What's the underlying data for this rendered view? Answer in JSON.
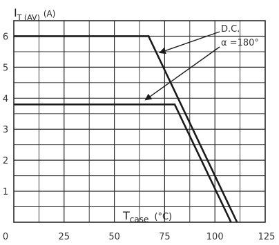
{
  "chart_data": {
    "type": "line",
    "title": "",
    "ylabel": {
      "main": "I",
      "sub": "T (AV)",
      "unit": "(A)"
    },
    "xlabel": {
      "main": "T",
      "sub": "case",
      "unit": "(°C)"
    },
    "xlim": [
      0,
      125
    ],
    "ylim": [
      0,
      6.5
    ],
    "x_ticks": [
      0,
      25,
      50,
      75,
      100,
      125
    ],
    "x_tick_labels": [
      "0",
      "25",
      "50",
      "75",
      "100",
      "125"
    ],
    "y_ticks": [
      1,
      2,
      3,
      4,
      5,
      6
    ],
    "y_tick_labels": [
      "1",
      "2",
      "3",
      "4",
      "5",
      "6"
    ],
    "grid": true,
    "series": [
      {
        "name": "D.C.",
        "points": [
          [
            0,
            6.0
          ],
          [
            67,
            6.0
          ],
          [
            111,
            0
          ]
        ]
      },
      {
        "name": "α =180°",
        "points": [
          [
            0,
            3.8
          ],
          [
            80,
            3.8
          ],
          [
            108,
            0
          ]
        ]
      }
    ],
    "annotations": [
      {
        "text": "D.C.",
        "series": "D.C."
      },
      {
        "text": "α =180°",
        "series": "α =180°"
      }
    ],
    "colors": {
      "line": "#1a1a1a",
      "grid": "#2a2a2a",
      "text": "#333333"
    }
  }
}
